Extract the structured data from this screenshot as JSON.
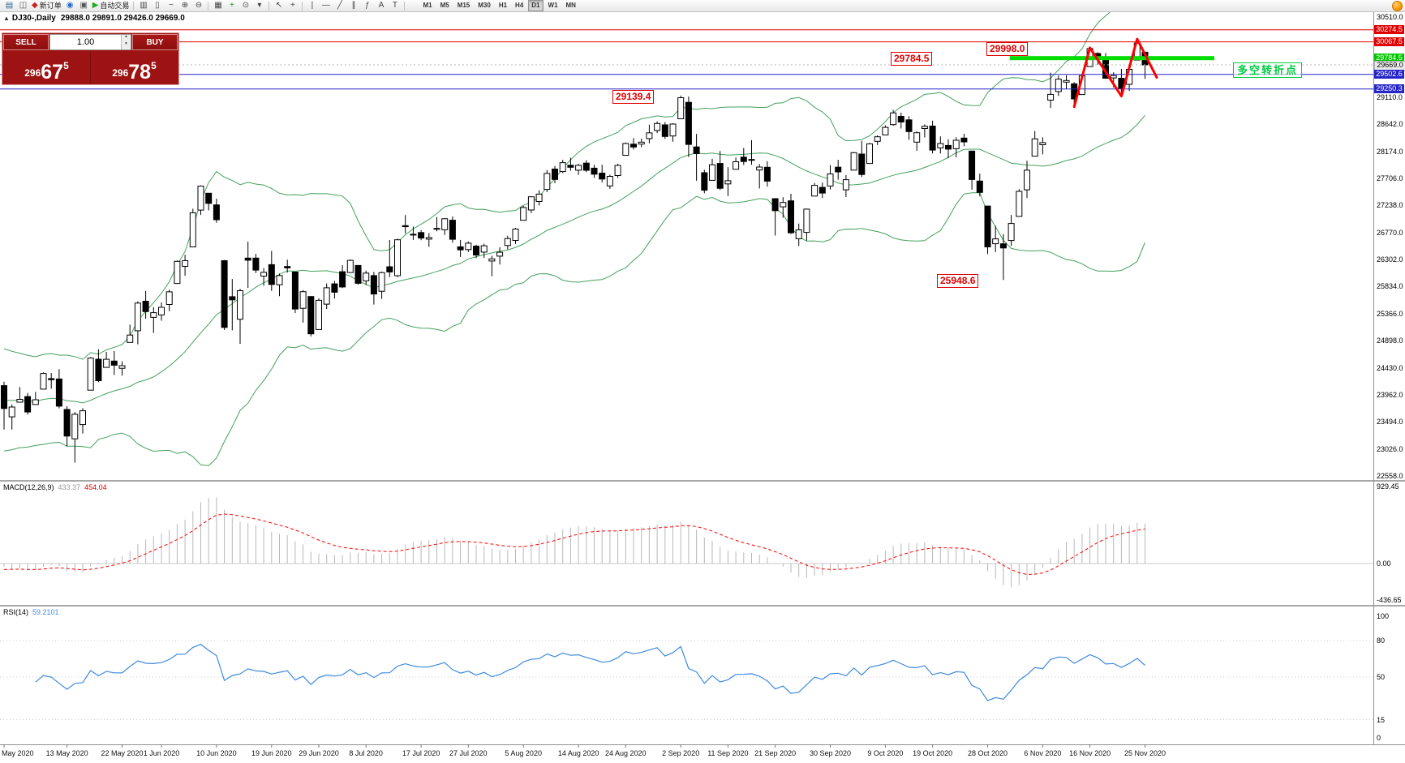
{
  "toolbar": {
    "buttons": [
      {
        "name": "charts-icon",
        "glyph": "▤",
        "color": "#336699"
      },
      {
        "name": "market-watch-icon",
        "glyph": "◫",
        "color": "#555555"
      },
      {
        "name": "new-order-button",
        "glyph": "◆",
        "color": "#cc2222",
        "label": "新订单"
      },
      {
        "name": "terminal-icon",
        "glyph": "◉",
        "color": "#2266cc"
      },
      {
        "name": "navigator-icon",
        "glyph": "▣",
        "color": "#555555"
      },
      {
        "name": "auto-trading-button",
        "glyph": "▶",
        "color": "#22aa22",
        "label": "自动交易"
      },
      {
        "sep": true
      },
      {
        "name": "bar-chart-icon",
        "glyph": "▥",
        "color": "#444444"
      },
      {
        "name": "candlestick-chart-icon",
        "glyph": "▯",
        "color": "#444444"
      },
      {
        "name": "line-chart-icon",
        "glyph": "~",
        "color": "#444444"
      },
      {
        "name": "zoom-in-icon",
        "glyph": "⊕",
        "color": "#444444"
      },
      {
        "name": "zoom-out-icon",
        "glyph": "⊖",
        "color": "#444444"
      },
      {
        "sep": true
      },
      {
        "name": "tile-windows-icon",
        "glyph": "▦",
        "color": "#444444"
      },
      {
        "name": "indicators-icon",
        "glyph": "+",
        "color": "#1a9a1a"
      },
      {
        "name": "period-icon",
        "glyph": "⊙",
        "color": "#444444"
      },
      {
        "name": "templates-icon",
        "glyph": "▾",
        "color": "#444444"
      },
      {
        "sep": true
      },
      {
        "name": "cursor-icon",
        "glyph": "↖",
        "color": "#444444"
      },
      {
        "name": "crosshair-icon",
        "glyph": "+",
        "color": "#444444"
      },
      {
        "sep": true
      },
      {
        "name": "vertical-line-icon",
        "glyph": "|",
        "color": "#444444"
      },
      {
        "name": "horizontal-line-icon",
        "glyph": "—",
        "color": "#444444"
      },
      {
        "name": "trendline-icon",
        "glyph": "╱",
        "color": "#444444"
      },
      {
        "name": "channel-icon",
        "glyph": "∥",
        "color": "#444444"
      },
      {
        "name": "fibonacci-icon",
        "glyph": "ƒ",
        "color": "#444444"
      },
      {
        "name": "text-icon",
        "glyph": "A",
        "color": "#444444"
      },
      {
        "name": "arrow-tools-icon",
        "glyph": "T",
        "color": "#444444"
      },
      {
        "sep": true
      }
    ],
    "timeframes": [
      "M1",
      "M5",
      "M15",
      "M30",
      "H1",
      "H4",
      "D1",
      "W1",
      "MN"
    ],
    "active_timeframe": "D1"
  },
  "chart_header": {
    "marker": "▲",
    "symbol": "DJ30-,Daily",
    "ohlc": "29888.0 29891.0 29426.0 29669.0"
  },
  "trade_panel": {
    "sell_label": "SELL",
    "buy_label": "BUY",
    "lot_value": "1.00",
    "lot_up": "▲",
    "lot_down": "▼",
    "sell_price": {
      "head": "296",
      "pips": "67",
      "frac": "5"
    },
    "buy_price": {
      "head": "296",
      "pips": "78",
      "frac": "5"
    }
  },
  "annotations": {
    "peak_high": "29998.0",
    "support_level": "29784.5",
    "sep_high": "29139.4",
    "oct_low": "25948.6",
    "pivot_note": "多空转折点"
  },
  "chart_data": {
    "type": "candlestick",
    "symbol": "DJ30-",
    "period": "Daily",
    "current_ohlc": {
      "open": 29888.0,
      "high": 29891.0,
      "low": 29426.0,
      "close": 29669.0
    },
    "y_axis": {
      "min": 22558.0,
      "max": 30510.0,
      "tick_labels": [
        30510.0,
        29110.0,
        28642.0,
        28174.0,
        27706.0,
        27238.0,
        26770.0,
        26302.0,
        25834.0,
        25366.0,
        24898.0,
        24430.0,
        23962.0,
        23494.0,
        23026.0,
        22558.0
      ]
    },
    "date_ticks": [
      {
        "label": "May 2020",
        "i": 0
      },
      {
        "label": "13 May 2020",
        "i": 8
      },
      {
        "label": "22 May 2020",
        "i": 15
      },
      {
        "label": "1 Jun 2020",
        "i": 20
      },
      {
        "label": "10 Jun 2020",
        "i": 27
      },
      {
        "label": "19 Jun 2020",
        "i": 34
      },
      {
        "label": "29 Jun 2020",
        "i": 40
      },
      {
        "label": "8 Jul 2020",
        "i": 46
      },
      {
        "label": "17 Jul 2020",
        "i": 53
      },
      {
        "label": "27 Jul 2020",
        "i": 59
      },
      {
        "label": "5 Aug 2020",
        "i": 66
      },
      {
        "label": "14 Aug 2020",
        "i": 73
      },
      {
        "label": "24 Aug 2020",
        "i": 79
      },
      {
        "label": "2 Sep 2020",
        "i": 86
      },
      {
        "label": "11 Sep 2020",
        "i": 92
      },
      {
        "label": "21 Sep 2020",
        "i": 98
      },
      {
        "label": "30 Sep 2020",
        "i": 105
      },
      {
        "label": "9 Oct 2020",
        "i": 112
      },
      {
        "label": "19 Oct 2020",
        "i": 118
      },
      {
        "label": "28 Oct 2020",
        "i": 125
      },
      {
        "label": "6 Nov 2020",
        "i": 132
      },
      {
        "label": "16 Nov 2020",
        "i": 138
      },
      {
        "label": "25 Nov 2020",
        "i": 145
      }
    ],
    "warmup_closes": [
      24242,
      23650,
      23018,
      23475,
      23515,
      23775,
      24133,
      24101,
      24633,
      24345
    ],
    "candles": [
      [
        24120,
        24188,
        23361,
        23724
      ],
      [
        23581,
        23795,
        23361,
        23750
      ],
      [
        23834,
        24094,
        23831,
        23883
      ],
      [
        23931,
        23994,
        23620,
        23665
      ],
      [
        23793,
        24013,
        23793,
        23876
      ],
      [
        24060,
        24349,
        24060,
        24331
      ],
      [
        24242,
        24338,
        24068,
        24222
      ],
      [
        24235,
        24405,
        23728,
        23765
      ],
      [
        23708,
        23766,
        23068,
        23248
      ],
      [
        23200,
        23665,
        22789,
        23625
      ],
      [
        23446,
        23730,
        23292,
        23685
      ],
      [
        24042,
        24613,
        24042,
        24597
      ],
      [
        24577,
        24748,
        24179,
        24206
      ],
      [
        24436,
        24705,
        24436,
        24576
      ],
      [
        24545,
        24719,
        24306,
        24474
      ],
      [
        24420,
        24539,
        24294,
        24465
      ],
      [
        24868,
        25176,
        24868,
        24995
      ],
      [
        25070,
        25580,
        24834,
        25548
      ],
      [
        25580,
        25758,
        25277,
        25401
      ],
      [
        25301,
        25477,
        25032,
        25383
      ],
      [
        25343,
        25559,
        25244,
        25475
      ],
      [
        25524,
        25780,
        25408,
        25743
      ],
      [
        25887,
        26286,
        25887,
        26270
      ],
      [
        26184,
        26384,
        26021,
        26282
      ],
      [
        26520,
        27181,
        26520,
        27111
      ],
      [
        27157,
        27581,
        27073,
        27572
      ],
      [
        27448,
        27448,
        27151,
        27272
      ],
      [
        27246,
        27355,
        26938,
        26990
      ],
      [
        26282,
        26294,
        25083,
        25128
      ],
      [
        25659,
        25965,
        25078,
        25605
      ],
      [
        25270,
        25793,
        24843,
        25763
      ],
      [
        26326,
        26611,
        25811,
        26290
      ],
      [
        26327,
        26400,
        26068,
        26120
      ],
      [
        26016,
        26154,
        25848,
        26080
      ],
      [
        26213,
        26451,
        25759,
        25871
      ],
      [
        25865,
        26059,
        25667,
        26025
      ],
      [
        26180,
        26298,
        26076,
        26156
      ],
      [
        26085,
        26085,
        25376,
        25446
      ],
      [
        25458,
        25772,
        25210,
        25746
      ],
      [
        25661,
        25661,
        24971,
        25016
      ],
      [
        25091,
        25631,
        25091,
        25596
      ],
      [
        25530,
        25886,
        25447,
        25813
      ],
      [
        25880,
        25931,
        25626,
        25735
      ],
      [
        26091,
        26204,
        25807,
        25827
      ],
      [
        26076,
        26306,
        26076,
        26287
      ],
      [
        26199,
        26199,
        25866,
        25890
      ],
      [
        25932,
        26109,
        25860,
        26067
      ],
      [
        26024,
        26087,
        25523,
        25706
      ],
      [
        25753,
        26093,
        25620,
        26075
      ],
      [
        26176,
        26639,
        25997,
        26086
      ],
      [
        26022,
        26661,
        25994,
        26643
      ],
      [
        26888,
        27071,
        26753,
        26870
      ],
      [
        26739,
        26870,
        26640,
        26735
      ],
      [
        26768,
        26811,
        26636,
        26672
      ],
      [
        26655,
        26758,
        26521,
        26681
      ],
      [
        26840,
        27036,
        26791,
        26840
      ],
      [
        26817,
        27021,
        26727,
        27006
      ],
      [
        26981,
        27047,
        26593,
        26652
      ],
      [
        26522,
        26640,
        26346,
        26470
      ],
      [
        26474,
        26616,
        26431,
        26585
      ],
      [
        26532,
        26558,
        26326,
        26379
      ],
      [
        26430,
        26576,
        26330,
        26540
      ],
      [
        26276,
        26366,
        26012,
        26313
      ],
      [
        26361,
        26514,
        26216,
        26428
      ],
      [
        26543,
        26714,
        26477,
        26664
      ],
      [
        26631,
        26848,
        26571,
        26828
      ],
      [
        26981,
        27232,
        26981,
        27202
      ],
      [
        27158,
        27397,
        27106,
        27387
      ],
      [
        27306,
        27500,
        27237,
        27433
      ],
      [
        27515,
        27850,
        27468,
        27791
      ],
      [
        27866,
        27920,
        27622,
        27686
      ],
      [
        27823,
        28027,
        27798,
        27977
      ],
      [
        27932,
        28063,
        27836,
        27897
      ],
      [
        27847,
        27959,
        27767,
        27931
      ],
      [
        27969,
        28019,
        27813,
        27845
      ],
      [
        27882,
        27940,
        27716,
        27778
      ],
      [
        27796,
        27939,
        27637,
        27693
      ],
      [
        27575,
        27769,
        27524,
        27740
      ],
      [
        27754,
        27959,
        27714,
        27930
      ],
      [
        28104,
        28327,
        28104,
        28308
      ],
      [
        28297,
        28400,
        28205,
        28248
      ],
      [
        28299,
        28394,
        28244,
        28332
      ],
      [
        28394,
        28634,
        28312,
        28492
      ],
      [
        28533,
        28691,
        28489,
        28654
      ],
      [
        28630,
        28678,
        28387,
        28430
      ],
      [
        28439,
        28659,
        28341,
        28645
      ],
      [
        28736,
        29139,
        28736,
        29100
      ],
      [
        29020,
        29120,
        28074,
        28292
      ],
      [
        28249,
        28474,
        27664,
        28133
      ],
      [
        27803,
        27854,
        27448,
        27500
      ],
      [
        27671,
        28043,
        27671,
        27940
      ],
      [
        27963,
        28178,
        27505,
        27534
      ],
      [
        27611,
        27900,
        27398,
        27665
      ],
      [
        27862,
        28066,
        27862,
        27993
      ],
      [
        28072,
        28232,
        27937,
        27996
      ],
      [
        28025,
        28365,
        27942,
        28032
      ],
      [
        27850,
        27954,
        27530,
        27902
      ],
      [
        27897,
        28003,
        27563,
        27657
      ],
      [
        27355,
        27355,
        26716,
        27147
      ],
      [
        27212,
        27380,
        27023,
        27288
      ],
      [
        27316,
        27438,
        26744,
        26763
      ],
      [
        26662,
        26924,
        26537,
        26815
      ],
      [
        26771,
        27184,
        26628,
        27174
      ],
      [
        27399,
        27625,
        27399,
        27584
      ],
      [
        27550,
        27633,
        27365,
        27452
      ],
      [
        27573,
        27935,
        27511,
        27782
      ],
      [
        27899,
        28026,
        27683,
        27817
      ],
      [
        27508,
        27763,
        27382,
        27683
      ],
      [
        27848,
        28162,
        27848,
        28149
      ],
      [
        28126,
        28354,
        27730,
        27773
      ],
      [
        27963,
        28318,
        27963,
        28303
      ],
      [
        28346,
        28448,
        28281,
        28425
      ],
      [
        28456,
        28624,
        28456,
        28587
      ],
      [
        28634,
        28890,
        28615,
        28838
      ],
      [
        28778,
        28843,
        28567,
        28680
      ],
      [
        28718,
        28779,
        28372,
        28514
      ],
      [
        28332,
        28518,
        28182,
        28494
      ],
      [
        28568,
        28639,
        28413,
        28606
      ],
      [
        28610,
        28703,
        28137,
        28195
      ],
      [
        28232,
        28432,
        28135,
        28308
      ],
      [
        28274,
        28379,
        28053,
        28211
      ],
      [
        28218,
        28418,
        28069,
        28364
      ],
      [
        28402,
        28477,
        28261,
        28336
      ],
      [
        28177,
        28177,
        27510,
        27685
      ],
      [
        27659,
        27787,
        27395,
        27463
      ],
      [
        27227,
        27227,
        26398,
        26520
      ],
      [
        26575,
        26886,
        26430,
        26659
      ],
      [
        26573,
        26740,
        25948,
        26502
      ],
      [
        26630,
        27072,
        26537,
        26925
      ],
      [
        27046,
        27518,
        27046,
        27480
      ],
      [
        27508,
        28010,
        27364,
        27847
      ],
      [
        28090,
        28525,
        28090,
        28390
      ],
      [
        28287,
        28416,
        28120,
        28323
      ],
      [
        29058,
        29534,
        28922,
        29158
      ],
      [
        29206,
        29483,
        29132,
        29421
      ],
      [
        29370,
        29489,
        29249,
        29398
      ],
      [
        29341,
        29369,
        28943,
        29080
      ],
      [
        29155,
        29513,
        29155,
        29480
      ],
      [
        29638,
        29964,
        29638,
        29950
      ],
      [
        29865,
        29888,
        29670,
        29783
      ],
      [
        29801,
        29873,
        29428,
        29438
      ],
      [
        29443,
        29540,
        29281,
        29483
      ],
      [
        29437,
        29598,
        29127,
        29263
      ],
      [
        29331,
        29633,
        29219,
        29591
      ],
      [
        29751,
        30116,
        29751,
        30046
      ],
      [
        29888,
        29891,
        29426,
        29669
      ]
    ],
    "overlays": {
      "bollinger_bands": {
        "period": 20,
        "deviation": 2,
        "color": "#44a05c"
      },
      "horizontal_lines": [
        {
          "price": 30274.5,
          "color": "#e00000",
          "style": "solid"
        },
        {
          "price": 30067.5,
          "color": "#e00000",
          "style": "solid"
        },
        {
          "price": 29502.6,
          "color": "#2424c8",
          "style": "solid"
        },
        {
          "price": 29250.3,
          "color": "#2424c8",
          "style": "solid"
        },
        {
          "price": 29669.0,
          "color": "#b4b4b4",
          "style": "dotted"
        }
      ],
      "support_segment": {
        "price": 29784.5,
        "from_index": 127.8,
        "to_index": 153.8,
        "color": "#00dd00",
        "width": 5
      },
      "zigzag": {
        "color": "#ff0000",
        "points": [
          [
            136,
            28943
          ],
          [
            138,
            29964
          ],
          [
            142,
            29127
          ],
          [
            144,
            30116
          ],
          [
            146.5,
            29450
          ]
        ]
      }
    },
    "indicators": {
      "macd": {
        "label": "MACD(12,26,9)",
        "fast": 12,
        "slow": 26,
        "signal": 9,
        "value_main": "433.37",
        "value_signal": "454.04",
        "axis_labels": [
          929.45,
          0.0,
          -436.65
        ],
        "histogram_color": "#b8b8b8",
        "signal_color": "#ff0000"
      },
      "rsi": {
        "label": "RSI(14)",
        "period": 14,
        "value": "59.2101",
        "axis_labels": [
          100,
          80,
          50,
          15,
          0
        ],
        "levels": [
          80,
          50,
          15
        ],
        "color": "#3f8ae0"
      }
    },
    "price_badges": [
      {
        "label": "30274.5",
        "price": 30274.5,
        "bg": "#e00000",
        "fg": "#ffffff"
      },
      {
        "label": "30067.5",
        "price": 30067.5,
        "bg": "#e00000",
        "fg": "#ffffff"
      },
      {
        "label": "29784.5",
        "price": 29784.5,
        "bg": "#00c800",
        "fg": "#ffffff"
      },
      {
        "label": "29669.0",
        "price": 29669.0,
        "bg": "#ececec",
        "fg": "#000000"
      },
      {
        "label": "29502.6",
        "price": 29502.6,
        "bg": "#2424c8",
        "fg": "#ffffff"
      },
      {
        "label": "29250.3",
        "price": 29250.3,
        "bg": "#2424c8",
        "fg": "#ffffff"
      }
    ]
  }
}
